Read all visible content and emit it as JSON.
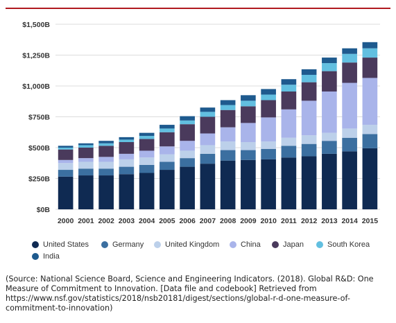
{
  "chart_data": {
    "type": "bar",
    "stacked": true,
    "categories": [
      "2000",
      "2001",
      "2002",
      "2003",
      "2004",
      "2005",
      "2006",
      "2007",
      "2008",
      "2009",
      "2010",
      "2011",
      "2012",
      "2013",
      "2014",
      "2015"
    ],
    "y_ticks": [
      "$0B",
      "$250B",
      "$500B",
      "$750B",
      "$1,000B",
      "$1,250B",
      "$1,500B"
    ],
    "ylim": [
      0,
      1500
    ],
    "grid": true,
    "legend_position": "bottom",
    "series": [
      {
        "name": "United States",
        "color": "#0f2a52",
        "values": [
          265,
          275,
          275,
          285,
          295,
          320,
          345,
          370,
          395,
          400,
          405,
          420,
          430,
          450,
          470,
          495
        ]
      },
      {
        "name": "Germany",
        "color": "#3b6fa0",
        "values": [
          55,
          55,
          55,
          60,
          65,
          65,
          70,
          80,
          85,
          80,
          85,
          95,
          100,
          105,
          110,
          115
        ]
      },
      {
        "name": "United Kingdom",
        "color": "#bcd0ea",
        "values": [
          55,
          55,
          55,
          60,
          60,
          60,
          60,
          70,
          70,
          65,
          60,
          65,
          70,
          65,
          75,
          75
        ]
      },
      {
        "name": "China",
        "color": "#a9b4ea",
        "values": [
          25,
          30,
          40,
          45,
          55,
          65,
          80,
          95,
          115,
          155,
          195,
          230,
          280,
          335,
          370,
          380
        ]
      },
      {
        "name": "Japan",
        "color": "#4a3a5c",
        "values": [
          85,
          85,
          90,
          95,
          95,
          115,
          135,
          135,
          140,
          135,
          140,
          145,
          150,
          165,
          165,
          165
        ]
      },
      {
        "name": "South Korea",
        "color": "#62bfe0",
        "values": [
          15,
          20,
          20,
          20,
          25,
          30,
          30,
          40,
          40,
          45,
          45,
          55,
          60,
          65,
          70,
          75
        ]
      },
      {
        "name": "India",
        "color": "#1e5a8e",
        "values": [
          15,
          15,
          20,
          20,
          25,
          30,
          35,
          35,
          40,
          45,
          45,
          45,
          45,
          45,
          45,
          50
        ]
      }
    ]
  },
  "source_text": "(Source: National Science Board, Science and Engineering Indicators. (2018). Global R&D: One Measure of Commitment to Innovation. [Data file and codebook] Retrieved from https://www.nsf.gov/statistics/2018/nsb20181/digest/sections/global-r-d-one-measure-of-commitment-to-innovation)"
}
